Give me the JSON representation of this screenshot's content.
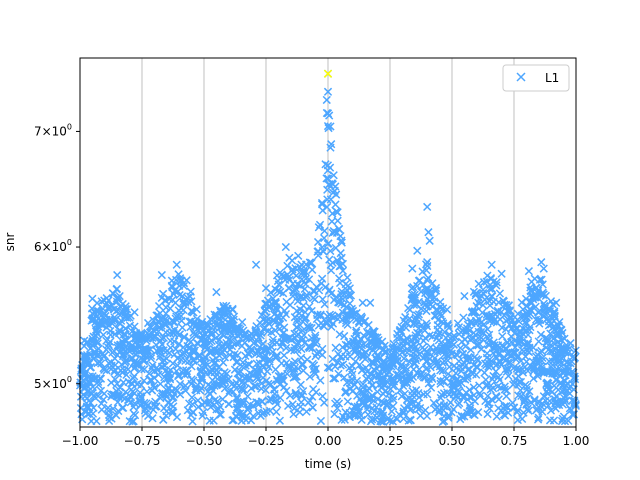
{
  "chart_data": {
    "type": "scatter",
    "title": "",
    "xlabel": "time (s)",
    "ylabel": "snr",
    "xlim": [
      -1.0,
      1.0
    ],
    "ylim": [
      4.72,
      7.72
    ],
    "yscale": "log",
    "xgrid": true,
    "ygrid": false,
    "legend_position": "top-right",
    "xticks": [
      -1.0,
      -0.75,
      -0.5,
      -0.25,
      0.0,
      0.25,
      0.5,
      0.75,
      1.0
    ],
    "xtick_labels": [
      "−1.00",
      "−0.75",
      "−0.50",
      "−0.25",
      "0.00",
      "0.25",
      "0.50",
      "0.75",
      "1.00"
    ],
    "yticks": [
      {
        "value": 5,
        "mant": "5",
        "exp": "0"
      },
      {
        "value": 6,
        "mant": "6",
        "exp": "0"
      },
      {
        "value": 7,
        "mant": "7",
        "exp": "0"
      }
    ],
    "marker": "x",
    "colors": {
      "series": "#4da6ff",
      "highlight": "#ffff00",
      "grid": "#b0b0b0"
    },
    "series": [
      {
        "name": "L1",
        "envelope": {
          "x": [
            -1.0,
            -0.95,
            -0.9,
            -0.85,
            -0.8,
            -0.75,
            -0.7,
            -0.65,
            -0.6,
            -0.55,
            -0.5,
            -0.45,
            -0.4,
            -0.35,
            -0.3,
            -0.25,
            -0.2,
            -0.15,
            -0.1,
            -0.05,
            -0.02,
            0.0,
            0.02,
            0.05,
            0.1,
            0.15,
            0.2,
            0.25,
            0.3,
            0.35,
            0.4,
            0.45,
            0.5,
            0.55,
            0.6,
            0.65,
            0.7,
            0.75,
            0.8,
            0.85,
            0.9,
            0.95,
            1.0
          ],
          "y": [
            5.2,
            5.55,
            5.6,
            5.7,
            5.5,
            5.35,
            5.5,
            5.7,
            5.8,
            5.65,
            5.4,
            5.5,
            5.6,
            5.45,
            5.35,
            5.6,
            5.8,
            5.95,
            5.85,
            6.0,
            6.5,
            7.4,
            6.7,
            6.1,
            5.55,
            5.45,
            5.35,
            5.2,
            5.45,
            5.75,
            5.9,
            5.6,
            5.35,
            5.5,
            5.7,
            5.8,
            5.7,
            5.45,
            5.65,
            5.85,
            5.6,
            5.35,
            5.25
          ]
        },
        "floor": 4.75,
        "points": [
          {
            "x": 0.0,
            "y": 7.56
          },
          {
            "x": 0.0,
            "y": 7.38
          },
          {
            "x": -0.005,
            "y": 7.3
          },
          {
            "x": 0.0,
            "y": 7.17
          },
          {
            "x": 0.0,
            "y": 7.05
          },
          {
            "x": 0.01,
            "y": 6.85
          },
          {
            "x": -0.01,
            "y": 6.7
          },
          {
            "x": 0.02,
            "y": 6.45
          },
          {
            "x": 0.03,
            "y": 6.35
          },
          {
            "x": 0.4,
            "y": 6.33
          },
          {
            "x": 0.405,
            "y": 6.12
          },
          {
            "x": 0.41,
            "y": 6.05
          },
          {
            "x": 0.4,
            "y": 5.88
          },
          {
            "x": 0.36,
            "y": 5.97
          },
          {
            "x": 0.34,
            "y": 5.83
          },
          {
            "x": -0.85,
            "y": 5.78
          },
          {
            "x": -0.84,
            "y": 5.62
          },
          {
            "x": -0.67,
            "y": 5.78
          },
          {
            "x": -0.61,
            "y": 5.86
          },
          {
            "x": -0.57,
            "y": 5.74
          },
          {
            "x": -0.45,
            "y": 5.65
          },
          {
            "x": -0.29,
            "y": 5.86
          },
          {
            "x": -0.25,
            "y": 5.68
          },
          {
            "x": -0.17,
            "y": 6.0
          },
          {
            "x": -0.12,
            "y": 5.93
          },
          {
            "x": -0.04,
            "y": 6.04
          },
          {
            "x": -0.07,
            "y": 5.87
          },
          {
            "x": 0.14,
            "y": 5.57
          },
          {
            "x": 0.17,
            "y": 5.57
          },
          {
            "x": 0.66,
            "y": 5.86
          },
          {
            "x": 0.7,
            "y": 5.79
          },
          {
            "x": 0.81,
            "y": 5.81
          },
          {
            "x": 0.86,
            "y": 5.88
          },
          {
            "x": 0.87,
            "y": 5.83
          },
          {
            "x": 0.92,
            "y": 5.57
          },
          {
            "x": 0.48,
            "y": 5.52
          },
          {
            "x": 0.55,
            "y": 5.62
          },
          {
            "x": 0.8,
            "y": 5.49
          },
          {
            "x": -0.78,
            "y": 5.5
          },
          {
            "x": -0.95,
            "y": 5.6
          },
          {
            "x": -0.8,
            "y": 5.22
          },
          {
            "x": 0.23,
            "y": 4.95
          }
        ],
        "highlight": {
          "x": 0.0,
          "y": 7.56
        }
      }
    ]
  }
}
